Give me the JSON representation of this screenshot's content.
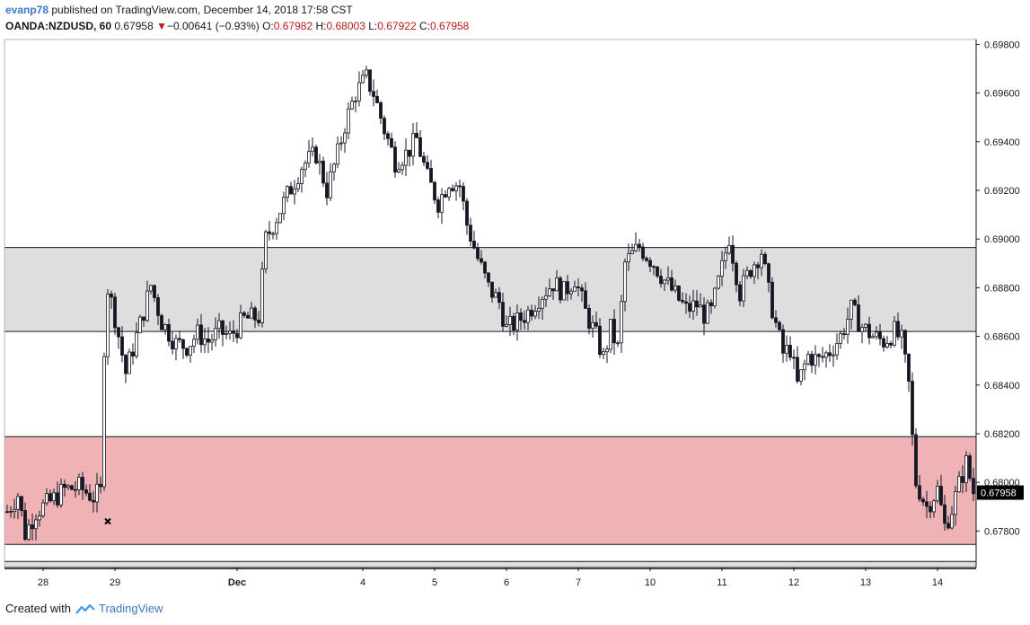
{
  "header": {
    "user": "evanp78",
    "published_text": "published on TradingView.com, December 14, 2018 17:58 CST",
    "symbol": "OANDA:NZDUSD, 60",
    "last": "0.67958",
    "change_arrow": "▼",
    "change": "−0.00641 (−0.93%)",
    "o_label": "O:",
    "o_value": "0.67982",
    "h_label": "H:",
    "h_value": "0.68003",
    "l_label": "L:",
    "l_value": "0.67922",
    "c_label": "C:",
    "c_value": "0.67958"
  },
  "footer": {
    "created_with": "Created with",
    "brand": "TradingView",
    "logo_icon": "tradingview-logo-icon"
  },
  "chart_data": {
    "type": "candlestick",
    "symbol": "OANDA:NZDUSD",
    "interval": "60",
    "ylim": [
      0.6765,
      0.6982
    ],
    "yticks": [
      "0.69800",
      "0.69600",
      "0.69400",
      "0.69200",
      "0.69000",
      "0.68800",
      "0.68600",
      "0.68400",
      "0.68200",
      "0.68000",
      "0.67800"
    ],
    "ytick_values": [
      0.698,
      0.696,
      0.694,
      0.692,
      0.69,
      0.688,
      0.686,
      0.684,
      0.682,
      0.68,
      0.678
    ],
    "last_price_label": "0.67958",
    "last_price": 0.67958,
    "xticks": [
      {
        "label": "28",
        "bar": 10
      },
      {
        "label": "29",
        "bar": 30
      },
      {
        "label": "Dec",
        "bar": 64
      },
      {
        "label": "4",
        "bar": 99
      },
      {
        "label": "5",
        "bar": 119
      },
      {
        "label": "6",
        "bar": 139
      },
      {
        "label": "7",
        "bar": 159
      },
      {
        "label": "10",
        "bar": 179
      },
      {
        "label": "11",
        "bar": 199
      },
      {
        "label": "12",
        "bar": 219
      },
      {
        "label": "13",
        "bar": 239
      },
      {
        "label": "14",
        "bar": 259
      }
    ],
    "zones": [
      {
        "from": 0.6862,
        "to": 0.68965,
        "color": "#dedede"
      },
      {
        "from": 0.67745,
        "to": 0.68188,
        "color": "#f0b3b5"
      },
      {
        "from": 0.67645,
        "to": 0.67675,
        "color": "#dedede"
      }
    ],
    "annotations": [
      {
        "type": "cross-marker",
        "bar": 28,
        "price": 0.6784
      }
    ],
    "path": [
      [
        0,
        0.6788
      ],
      [
        3,
        0.6795
      ],
      [
        5,
        0.6779
      ],
      [
        8,
        0.6788
      ],
      [
        12,
        0.6792
      ],
      [
        16,
        0.6797
      ],
      [
        20,
        0.6798
      ],
      [
        24,
        0.6794
      ],
      [
        26,
        0.6796
      ],
      [
        27,
        0.6856
      ],
      [
        28,
        0.688
      ],
      [
        30,
        0.6868
      ],
      [
        33,
        0.6845
      ],
      [
        37,
        0.6865
      ],
      [
        40,
        0.6881
      ],
      [
        43,
        0.6866
      ],
      [
        47,
        0.6857
      ],
      [
        50,
        0.6856
      ],
      [
        53,
        0.6861
      ],
      [
        56,
        0.6858
      ],
      [
        59,
        0.6862
      ],
      [
        62,
        0.686
      ],
      [
        66,
        0.6867
      ],
      [
        70,
        0.6868
      ],
      [
        72,
        0.69
      ],
      [
        74,
        0.6906
      ],
      [
        78,
        0.6918
      ],
      [
        82,
        0.693
      ],
      [
        86,
        0.6935
      ],
      [
        89,
        0.692
      ],
      [
        92,
        0.6935
      ],
      [
        94,
        0.6947
      ],
      [
        97,
        0.696
      ],
      [
        100,
        0.6966
      ],
      [
        102,
        0.696
      ],
      [
        105,
        0.6945
      ],
      [
        108,
        0.6932
      ],
      [
        111,
        0.6935
      ],
      [
        114,
        0.6941
      ],
      [
        117,
        0.6925
      ],
      [
        120,
        0.6915
      ],
      [
        123,
        0.6924
      ],
      [
        126,
        0.6922
      ],
      [
        128,
        0.6906
      ],
      [
        131,
        0.6892
      ],
      [
        134,
        0.688
      ],
      [
        137,
        0.6874
      ],
      [
        139,
        0.6863
      ],
      [
        142,
        0.6866
      ],
      [
        145,
        0.687
      ],
      [
        148,
        0.6876
      ],
      [
        152,
        0.6882
      ],
      [
        155,
        0.6878
      ],
      [
        158,
        0.6884
      ],
      [
        161,
        0.687
      ],
      [
        164,
        0.686
      ],
      [
        166,
        0.6851
      ],
      [
        168,
        0.6863
      ],
      [
        170,
        0.6855
      ],
      [
        172,
        0.689
      ],
      [
        176,
        0.6897
      ],
      [
        180,
        0.689
      ],
      [
        183,
        0.6883
      ],
      [
        186,
        0.6877
      ],
      [
        189,
        0.6871
      ],
      [
        192,
        0.6873
      ],
      [
        194,
        0.6869
      ],
      [
        196,
        0.687
      ],
      [
        199,
        0.6888
      ],
      [
        201,
        0.6901
      ],
      [
        204,
        0.6878
      ],
      [
        207,
        0.6888
      ],
      [
        210,
        0.6895
      ],
      [
        212,
        0.6878
      ],
      [
        214,
        0.6865
      ],
      [
        216,
        0.6853
      ],
      [
        218,
        0.6855
      ],
      [
        220,
        0.684
      ],
      [
        223,
        0.6852
      ],
      [
        226,
        0.685
      ],
      [
        229,
        0.6854
      ],
      [
        232,
        0.686
      ],
      [
        235,
        0.6871
      ],
      [
        238,
        0.6864
      ],
      [
        241,
        0.686
      ],
      [
        244,
        0.6858
      ],
      [
        247,
        0.6862
      ],
      [
        249,
        0.6858
      ],
      [
        251,
        0.684
      ],
      [
        252,
        0.6818
      ],
      [
        253,
        0.68
      ],
      [
        256,
        0.679
      ],
      [
        259,
        0.6797
      ],
      [
        261,
        0.6782
      ],
      [
        263,
        0.6789
      ],
      [
        265,
        0.6799
      ],
      [
        267,
        0.6808
      ],
      [
        269,
        0.6796
      ]
    ]
  }
}
